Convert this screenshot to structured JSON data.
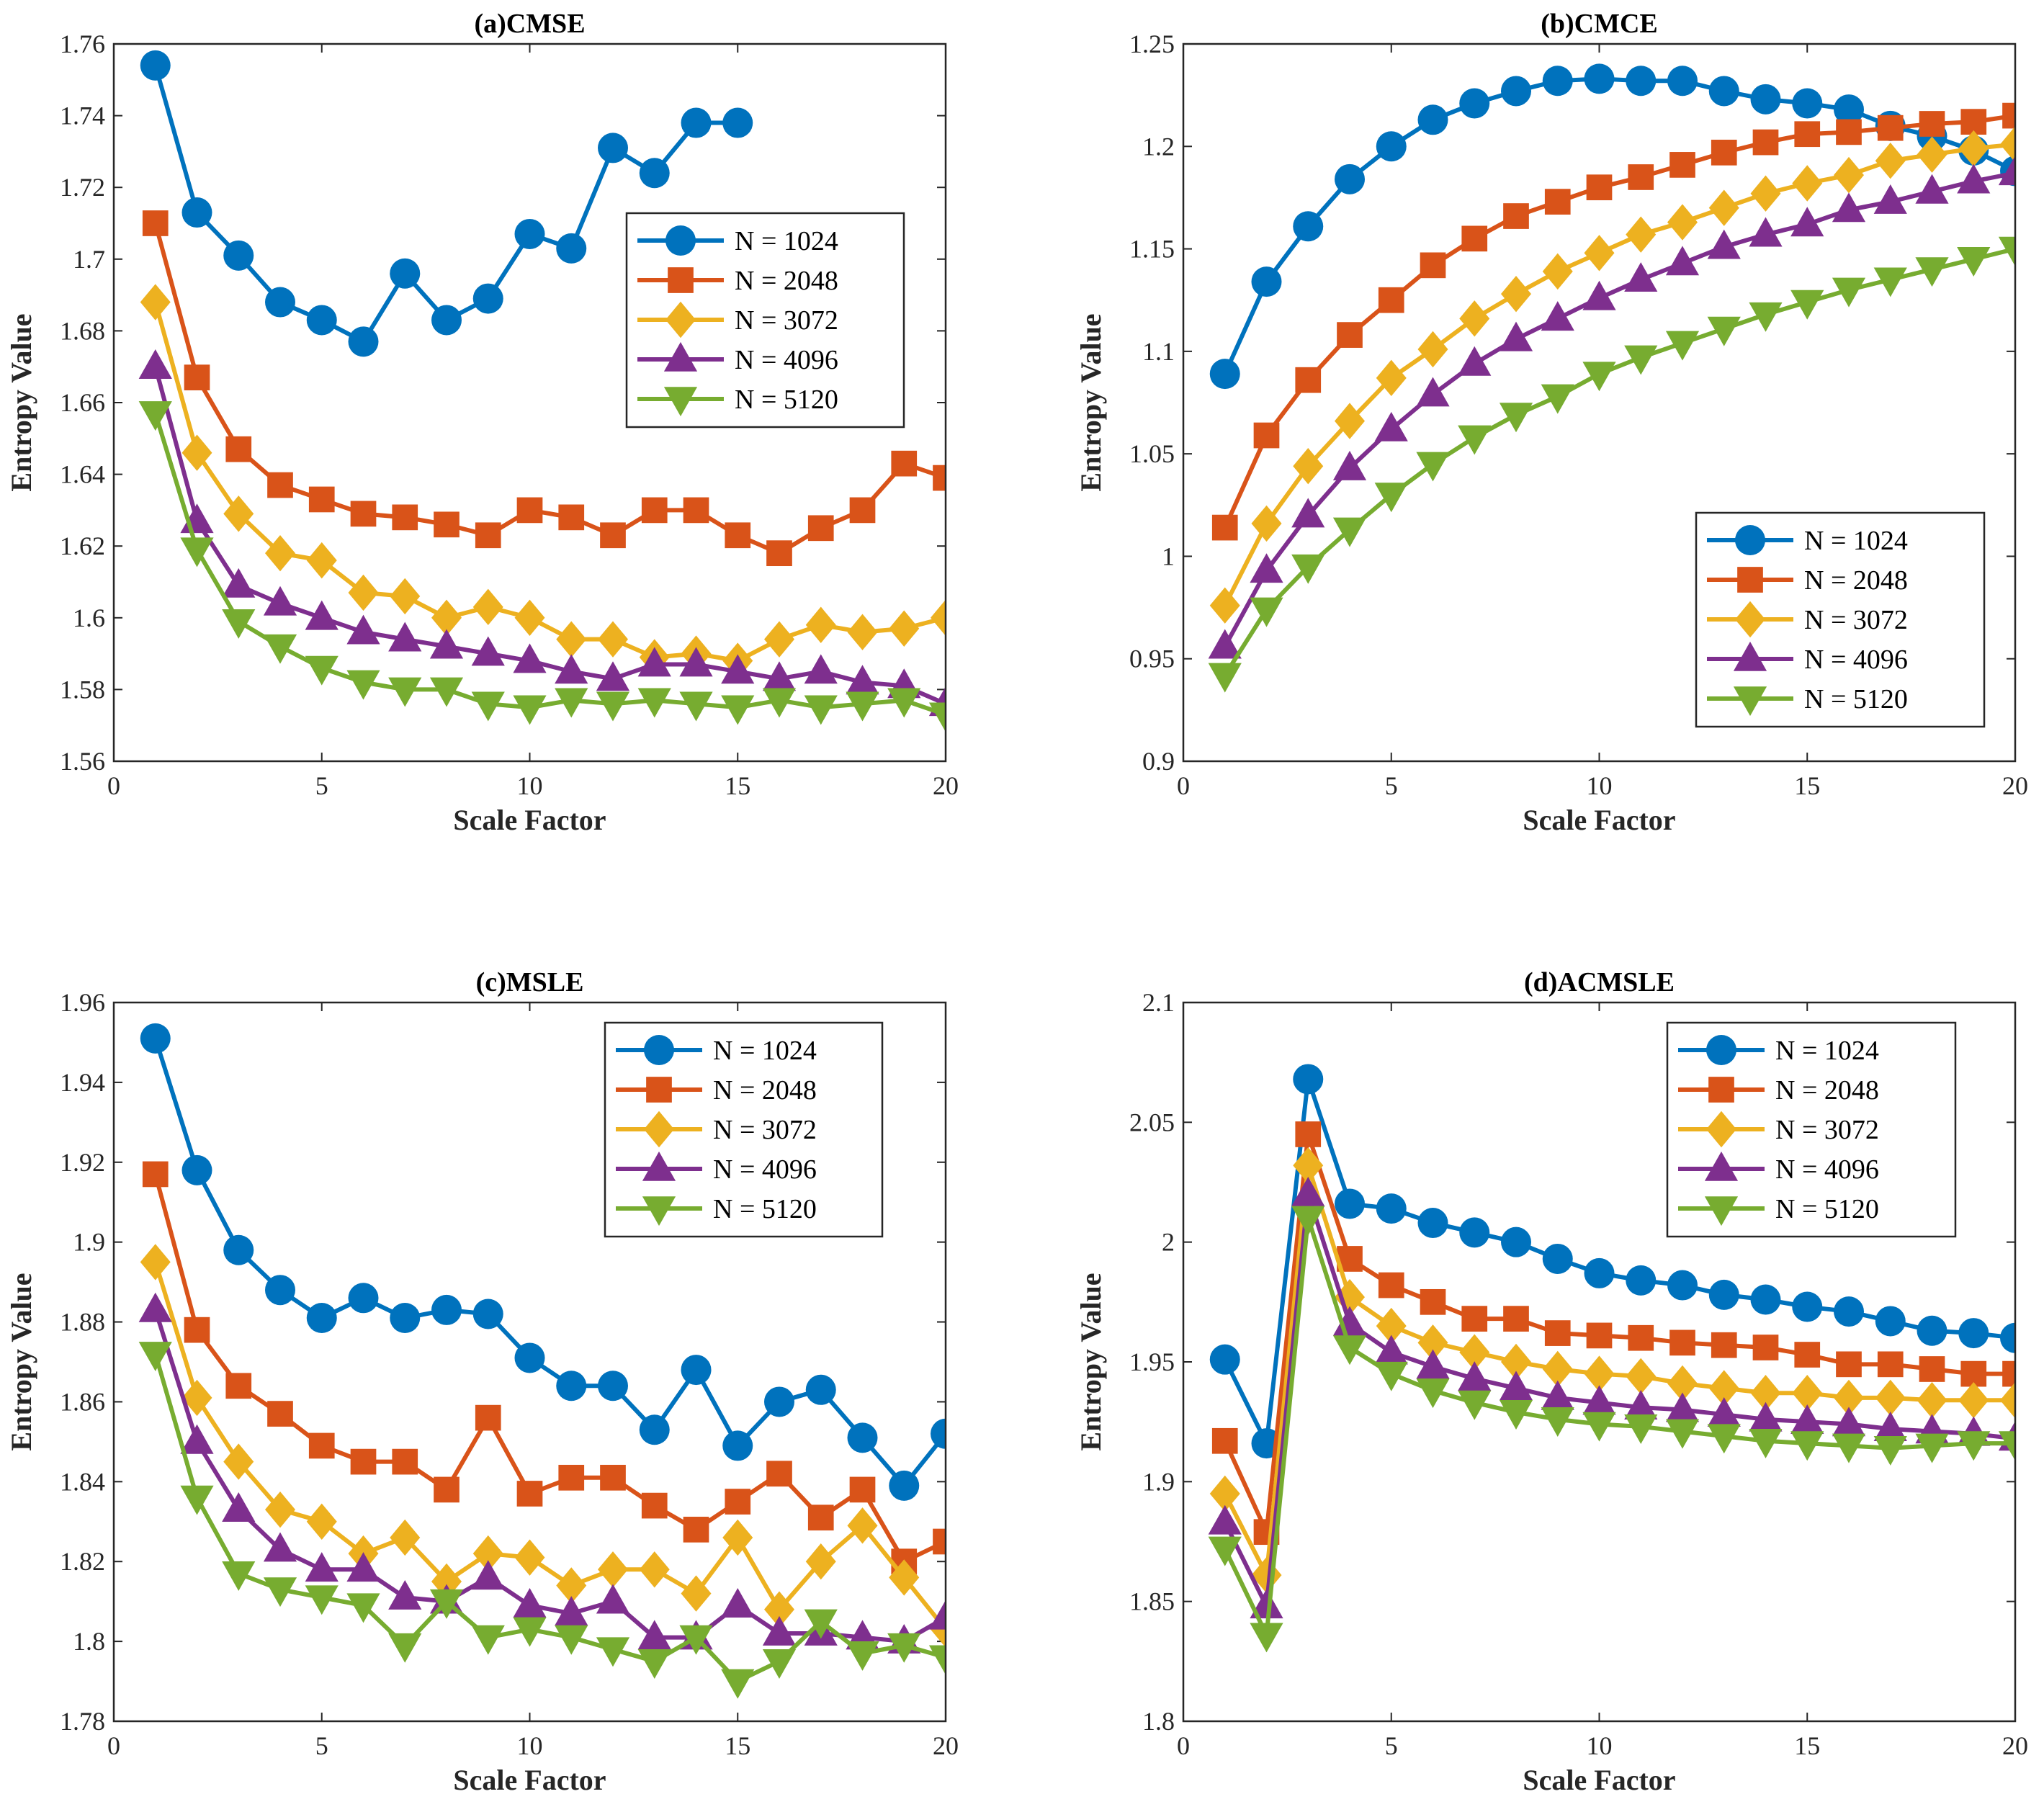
{
  "chart_data": [
    {
      "type": "line",
      "title": "(a)CMSE",
      "xlabel": "Scale Factor",
      "ylabel": "Entropy Value",
      "xlim": [
        0,
        20
      ],
      "ylim": [
        1.56,
        1.76
      ],
      "xticks": [
        0,
        5,
        10,
        15,
        20
      ],
      "yticks": [
        1.56,
        1.58,
        1.6,
        1.62,
        1.64,
        1.66,
        1.68,
        1.7,
        1.72,
        1.74,
        1.76
      ],
      "ytick_labels": [
        "1.56",
        "1.58",
        "1.6",
        "1.62",
        "1.64",
        "1.66",
        "1.68",
        "1.7",
        "1.72",
        "1.74",
        "1.76"
      ],
      "legend_position": "top-right",
      "series": [
        {
          "name": "N = 1024",
          "x": [
            1,
            2,
            3,
            4,
            5,
            6,
            7,
            8,
            9,
            10,
            11,
            12,
            13,
            14,
            15
          ],
          "values": [
            1.754,
            1.713,
            1.701,
            1.688,
            1.683,
            1.677,
            1.696,
            1.683,
            1.689,
            1.707,
            1.703,
            1.731,
            1.724,
            1.738,
            1.738
          ]
        },
        {
          "name": "N = 2048",
          "x": [
            1,
            2,
            3,
            4,
            5,
            6,
            7,
            8,
            9,
            10,
            11,
            12,
            13,
            14,
            15,
            16,
            17,
            18,
            19,
            20
          ],
          "values": [
            1.71,
            1.667,
            1.647,
            1.637,
            1.633,
            1.629,
            1.628,
            1.626,
            1.623,
            1.63,
            1.628,
            1.623,
            1.63,
            1.63,
            1.623,
            1.618,
            1.625,
            1.63,
            1.643,
            1.639
          ]
        },
        {
          "name": "N = 3072",
          "x": [
            1,
            2,
            3,
            4,
            5,
            6,
            7,
            8,
            9,
            10,
            11,
            12,
            13,
            14,
            15,
            16,
            17,
            18,
            19,
            20
          ],
          "values": [
            1.688,
            1.646,
            1.629,
            1.618,
            1.616,
            1.607,
            1.606,
            1.6,
            1.603,
            1.6,
            1.594,
            1.594,
            1.589,
            1.59,
            1.588,
            1.594,
            1.598,
            1.596,
            1.597,
            1.6
          ]
        },
        {
          "name": "N = 4096",
          "x": [
            1,
            2,
            3,
            4,
            5,
            6,
            7,
            8,
            9,
            10,
            11,
            12,
            13,
            14,
            15,
            16,
            17,
            18,
            19,
            20
          ],
          "values": [
            1.67,
            1.627,
            1.609,
            1.604,
            1.6,
            1.596,
            1.594,
            1.592,
            1.59,
            1.588,
            1.585,
            1.583,
            1.587,
            1.587,
            1.585,
            1.583,
            1.585,
            1.582,
            1.581,
            1.576
          ]
        },
        {
          "name": "N = 5120",
          "x": [
            1,
            2,
            3,
            4,
            5,
            6,
            7,
            8,
            9,
            10,
            11,
            12,
            13,
            14,
            15,
            16,
            17,
            18,
            19,
            20
          ],
          "values": [
            1.657,
            1.619,
            1.599,
            1.592,
            1.586,
            1.582,
            1.58,
            1.58,
            1.576,
            1.575,
            1.577,
            1.576,
            1.577,
            1.576,
            1.575,
            1.577,
            1.575,
            1.576,
            1.577,
            1.573
          ]
        }
      ]
    },
    {
      "type": "line",
      "title": "(b)CMCE",
      "xlabel": "Scale Factor",
      "ylabel": "Entropy Value",
      "xlim": [
        0,
        20
      ],
      "ylim": [
        0.9,
        1.25
      ],
      "xticks": [
        0,
        5,
        10,
        15,
        20
      ],
      "yticks": [
        0.9,
        0.95,
        1.0,
        1.05,
        1.1,
        1.15,
        1.2,
        1.25
      ],
      "ytick_labels": [
        "0.9",
        "0.95",
        "1",
        "1.05",
        "1.1",
        "1.15",
        "1.2",
        "1.25"
      ],
      "legend_position": "bottom-right",
      "series": [
        {
          "name": "N = 1024",
          "x": [
            1,
            2,
            3,
            4,
            5,
            6,
            7,
            8,
            9,
            10,
            11,
            12,
            13,
            14,
            15,
            16,
            17,
            18,
            19,
            20
          ],
          "values": [
            1.089,
            1.134,
            1.161,
            1.184,
            1.2,
            1.213,
            1.221,
            1.227,
            1.232,
            1.233,
            1.232,
            1.232,
            1.227,
            1.223,
            1.221,
            1.218,
            1.21,
            1.205,
            1.198,
            1.188
          ]
        },
        {
          "name": "N = 2048",
          "x": [
            1,
            2,
            3,
            4,
            5,
            6,
            7,
            8,
            9,
            10,
            11,
            12,
            13,
            14,
            15,
            16,
            17,
            18,
            19,
            20
          ],
          "values": [
            1.014,
            1.059,
            1.086,
            1.108,
            1.125,
            1.142,
            1.155,
            1.166,
            1.173,
            1.18,
            1.185,
            1.191,
            1.197,
            1.202,
            1.206,
            1.207,
            1.209,
            1.211,
            1.212,
            1.215
          ]
        },
        {
          "name": "N = 3072",
          "x": [
            1,
            2,
            3,
            4,
            5,
            6,
            7,
            8,
            9,
            10,
            11,
            12,
            13,
            14,
            15,
            16,
            17,
            18,
            19,
            20
          ],
          "values": [
            0.976,
            1.016,
            1.044,
            1.066,
            1.087,
            1.101,
            1.116,
            1.128,
            1.139,
            1.148,
            1.157,
            1.163,
            1.17,
            1.177,
            1.182,
            1.186,
            1.193,
            1.196,
            1.199,
            1.201
          ]
        },
        {
          "name": "N = 4096",
          "x": [
            1,
            2,
            3,
            4,
            5,
            6,
            7,
            8,
            9,
            10,
            11,
            12,
            13,
            14,
            15,
            16,
            17,
            18,
            19,
            20
          ],
          "values": [
            0.956,
            0.993,
            1.02,
            1.043,
            1.062,
            1.079,
            1.094,
            1.106,
            1.116,
            1.126,
            1.135,
            1.143,
            1.151,
            1.157,
            1.162,
            1.169,
            1.173,
            1.178,
            1.183,
            1.187
          ]
        },
        {
          "name": "N = 5120",
          "x": [
            1,
            2,
            3,
            4,
            5,
            6,
            7,
            8,
            9,
            10,
            11,
            12,
            13,
            14,
            15,
            16,
            17,
            18,
            19,
            20
          ],
          "values": [
            0.942,
            0.974,
            0.995,
            1.013,
            1.03,
            1.045,
            1.058,
            1.069,
            1.078,
            1.089,
            1.097,
            1.104,
            1.111,
            1.118,
            1.124,
            1.13,
            1.135,
            1.14,
            1.145,
            1.15
          ]
        }
      ]
    },
    {
      "type": "line",
      "title": "(c)MSLE",
      "xlabel": "Scale Factor",
      "ylabel": "Entropy Value",
      "xlim": [
        0,
        20
      ],
      "ylim": [
        1.78,
        1.96
      ],
      "xticks": [
        0,
        5,
        10,
        15,
        20
      ],
      "yticks": [
        1.78,
        1.8,
        1.82,
        1.84,
        1.86,
        1.88,
        1.9,
        1.92,
        1.94,
        1.96
      ],
      "ytick_labels": [
        "1.78",
        "1.8",
        "1.82",
        "1.84",
        "1.86",
        "1.88",
        "1.9",
        "1.92",
        "1.94",
        "1.96"
      ],
      "legend_position": "top-right",
      "series": [
        {
          "name": "N = 1024",
          "x": [
            1,
            2,
            3,
            4,
            5,
            6,
            7,
            8,
            9,
            10,
            11,
            12,
            13,
            14,
            15,
            16,
            17,
            18,
            19,
            20
          ],
          "values": [
            1.951,
            1.918,
            1.898,
            1.888,
            1.881,
            1.886,
            1.881,
            1.883,
            1.882,
            1.871,
            1.864,
            1.864,
            1.853,
            1.868,
            1.849,
            1.86,
            1.863,
            1.851,
            1.839,
            1.852
          ]
        },
        {
          "name": "N = 2048",
          "x": [
            1,
            2,
            3,
            4,
            5,
            6,
            7,
            8,
            9,
            10,
            11,
            12,
            13,
            14,
            15,
            16,
            17,
            18,
            19,
            20
          ],
          "values": [
            1.917,
            1.878,
            1.864,
            1.857,
            1.849,
            1.845,
            1.845,
            1.838,
            1.856,
            1.837,
            1.841,
            1.841,
            1.834,
            1.828,
            1.835,
            1.842,
            1.831,
            1.838,
            1.82,
            1.825
          ]
        },
        {
          "name": "N = 3072",
          "x": [
            1,
            2,
            3,
            4,
            5,
            6,
            7,
            8,
            9,
            10,
            11,
            12,
            13,
            14,
            15,
            16,
            17,
            18,
            19,
            20
          ],
          "values": [
            1.895,
            1.861,
            1.845,
            1.833,
            1.83,
            1.822,
            1.826,
            1.815,
            1.822,
            1.821,
            1.814,
            1.818,
            1.818,
            1.812,
            1.826,
            1.808,
            1.82,
            1.829,
            1.816,
            1.803
          ]
        },
        {
          "name": "N = 4096",
          "x": [
            1,
            2,
            3,
            4,
            5,
            6,
            7,
            8,
            9,
            10,
            11,
            12,
            13,
            14,
            15,
            16,
            17,
            18,
            19,
            20
          ],
          "values": [
            1.883,
            1.85,
            1.833,
            1.823,
            1.818,
            1.818,
            1.811,
            1.81,
            1.816,
            1.809,
            1.807,
            1.81,
            1.801,
            1.801,
            1.809,
            1.802,
            1.802,
            1.801,
            1.8,
            1.806
          ]
        },
        {
          "name": "N = 5120",
          "x": [
            1,
            2,
            3,
            4,
            5,
            6,
            7,
            8,
            9,
            10,
            11,
            12,
            13,
            14,
            15,
            16,
            17,
            18,
            19,
            20
          ],
          "values": [
            1.872,
            1.836,
            1.817,
            1.813,
            1.811,
            1.809,
            1.799,
            1.81,
            1.801,
            1.803,
            1.801,
            1.798,
            1.795,
            1.801,
            1.79,
            1.795,
            1.805,
            1.797,
            1.799,
            1.796
          ]
        }
      ]
    },
    {
      "type": "line",
      "title": "(d)ACMSLE",
      "xlabel": "Scale Factor",
      "ylabel": "Entropy Value",
      "xlim": [
        0,
        20
      ],
      "ylim": [
        1.8,
        2.1
      ],
      "xticks": [
        0,
        5,
        10,
        15,
        20
      ],
      "yticks": [
        1.8,
        1.85,
        1.9,
        1.95,
        2.0,
        2.05,
        2.1
      ],
      "ytick_labels": [
        "1.8",
        "1.85",
        "1.9",
        "1.95",
        "2",
        "2.05",
        "2.1"
      ],
      "legend_position": "top-right",
      "series": [
        {
          "name": "N = 1024",
          "x": [
            1,
            2,
            3,
            4,
            5,
            6,
            7,
            8,
            9,
            10,
            11,
            12,
            13,
            14,
            15,
            16,
            17,
            18,
            19,
            20
          ],
          "values": [
            1.951,
            1.916,
            2.068,
            2.016,
            2.014,
            2.008,
            2.004,
            2.0,
            1.993,
            1.987,
            1.984,
            1.982,
            1.978,
            1.976,
            1.973,
            1.971,
            1.967,
            1.963,
            1.962,
            1.96
          ]
        },
        {
          "name": "N = 2048",
          "x": [
            1,
            2,
            3,
            4,
            5,
            6,
            7,
            8,
            9,
            10,
            11,
            12,
            13,
            14,
            15,
            16,
            17,
            18,
            19,
            20
          ],
          "values": [
            1.917,
            1.879,
            2.045,
            1.993,
            1.982,
            1.975,
            1.968,
            1.968,
            1.962,
            1.961,
            1.96,
            1.958,
            1.957,
            1.956,
            1.953,
            1.949,
            1.949,
            1.947,
            1.945,
            1.945
          ]
        },
        {
          "name": "N = 3072",
          "x": [
            1,
            2,
            3,
            4,
            5,
            6,
            7,
            8,
            9,
            10,
            11,
            12,
            13,
            14,
            15,
            16,
            17,
            18,
            19,
            20
          ],
          "values": [
            1.895,
            1.861,
            2.032,
            1.977,
            1.965,
            1.958,
            1.954,
            1.95,
            1.947,
            1.945,
            1.944,
            1.941,
            1.939,
            1.937,
            1.937,
            1.935,
            1.935,
            1.934,
            1.934,
            1.934
          ]
        },
        {
          "name": "N = 4096",
          "x": [
            1,
            2,
            3,
            4,
            5,
            6,
            7,
            8,
            9,
            10,
            11,
            12,
            13,
            14,
            15,
            16,
            17,
            18,
            19,
            20
          ],
          "values": [
            1.883,
            1.848,
            2.02,
            1.966,
            1.954,
            1.948,
            1.943,
            1.939,
            1.935,
            1.933,
            1.931,
            1.93,
            1.928,
            1.926,
            1.925,
            1.924,
            1.922,
            1.921,
            1.92,
            1.918
          ]
        },
        {
          "name": "N = 5120",
          "x": [
            1,
            2,
            3,
            4,
            5,
            6,
            7,
            8,
            9,
            10,
            11,
            12,
            13,
            14,
            15,
            16,
            17,
            18,
            19,
            20
          ],
          "values": [
            1.872,
            1.836,
            2.01,
            1.956,
            1.945,
            1.938,
            1.933,
            1.929,
            1.926,
            1.924,
            1.923,
            1.921,
            1.919,
            1.917,
            1.916,
            1.915,
            1.914,
            1.915,
            1.916,
            1.916
          ]
        }
      ]
    }
  ],
  "style": {
    "series_colors": [
      "#0072BD",
      "#D95319",
      "#EDB120",
      "#7E2F8E",
      "#77AC30"
    ],
    "series_markers": [
      "circle-icon",
      "square-icon",
      "diamond-icon",
      "triangle-up-icon",
      "triangle-down-icon"
    ]
  }
}
